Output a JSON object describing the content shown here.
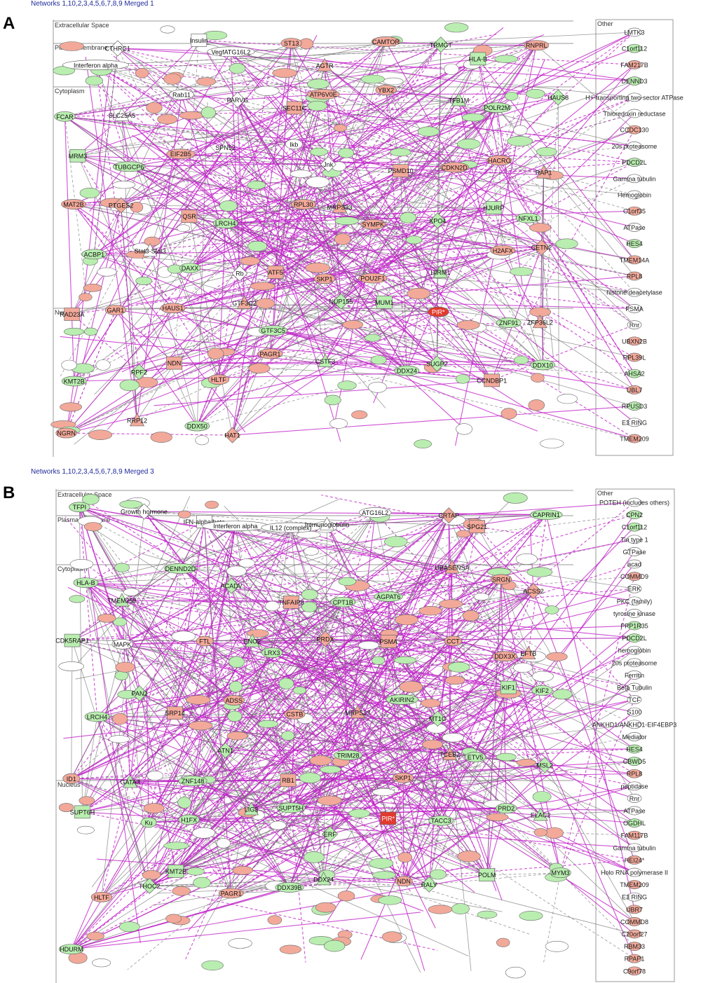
{
  "panels": [
    {
      "letter": "A",
      "title": "Networks 1,10,2,3,4,5,6,7,8,9 Merged 1",
      "layers": [
        "Extracellular Space",
        "Plasma Membrane",
        "Cytoplasm",
        "Nucleus"
      ],
      "other_label": "Other",
      "nodes": [
        {
          "label": "Interferon alpha",
          "color": "none"
        },
        {
          "label": "CTHRC1",
          "color": "none"
        },
        {
          "label": "Insulin",
          "color": "none"
        },
        {
          "label": "VegfATG16L2",
          "color": "none"
        },
        {
          "label": "ST13",
          "color": "red"
        },
        {
          "label": "AGTR",
          "color": "red"
        },
        {
          "label": "CAMTOR",
          "color": "red"
        },
        {
          "label": "TRMGT",
          "color": "green"
        },
        {
          "label": "HLA-B",
          "color": "green"
        },
        {
          "label": "RNPRL",
          "color": "red"
        },
        {
          "label": "FCAR",
          "color": "green"
        },
        {
          "label": "SLC25A5",
          "color": "none"
        },
        {
          "label": "Rab11",
          "color": "none"
        },
        {
          "label": "PARVG",
          "color": "none"
        },
        {
          "label": "SEC11C",
          "color": "red"
        },
        {
          "label": "ATP6V0E",
          "color": "red"
        },
        {
          "label": "YBX2",
          "color": "red"
        },
        {
          "label": "TFB1M",
          "color": "green"
        },
        {
          "label": "POLR2M",
          "color": "green"
        },
        {
          "label": "HAUS8",
          "color": "green"
        },
        {
          "label": "MRM3",
          "color": "green"
        },
        {
          "label": "TUBGCP6",
          "color": "green"
        },
        {
          "label": "EIF2B5",
          "color": "red"
        },
        {
          "label": "SPN52",
          "color": "none"
        },
        {
          "label": "Ikb",
          "color": "none"
        },
        {
          "label": "Jnk",
          "color": "none"
        },
        {
          "label": "PSMD10",
          "color": "red"
        },
        {
          "label": "CDKN2D",
          "color": "red"
        },
        {
          "label": "HACRO",
          "color": "red"
        },
        {
          "label": "RAP1",
          "color": "red"
        },
        {
          "label": "MAT2B",
          "color": "red"
        },
        {
          "label": "PTGES2",
          "color": "red"
        },
        {
          "label": "QSR",
          "color": "red"
        },
        {
          "label": "LRCH4",
          "color": "green"
        },
        {
          "label": "RPL30",
          "color": "red"
        },
        {
          "label": "MRPS33",
          "color": "red"
        },
        {
          "label": "SYMPK",
          "color": "red"
        },
        {
          "label": "XPO4",
          "color": "green"
        },
        {
          "label": "HJURP",
          "color": "green"
        },
        {
          "label": "NFXL1",
          "color": "green"
        },
        {
          "label": "ACBP1",
          "color": "green"
        },
        {
          "label": "Stat3-Stat3",
          "color": "none"
        },
        {
          "label": "DAXX",
          "color": "green"
        },
        {
          "label": "Rb",
          "color": "none"
        },
        {
          "label": "ATF5",
          "color": "red"
        },
        {
          "label": "SKP1",
          "color": "red"
        },
        {
          "label": "POU2F1",
          "color": "red"
        },
        {
          "label": "HIRM1",
          "color": "green"
        },
        {
          "label": "H2AFX",
          "color": "red"
        },
        {
          "label": "CETN2",
          "color": "red"
        },
        {
          "label": "RAD23A",
          "color": "red"
        },
        {
          "label": "GAR1",
          "color": "red"
        },
        {
          "label": "HAUS1",
          "color": "red"
        },
        {
          "label": "GTF3C2",
          "color": "red"
        },
        {
          "label": "GTF3C5",
          "color": "green"
        },
        {
          "label": "NUP155",
          "color": "green"
        },
        {
          "label": "MUM1",
          "color": "green"
        },
        {
          "label": "PIR*",
          "color": "dark-red"
        },
        {
          "label": "ZNF91",
          "color": "green"
        },
        {
          "label": "ZFP36L2",
          "color": "red"
        },
        {
          "label": "KMT2B",
          "color": "green"
        },
        {
          "label": "RPF2",
          "color": "green"
        },
        {
          "label": "NDN",
          "color": "red"
        },
        {
          "label": "HLTF",
          "color": "red"
        },
        {
          "label": "PAGR1",
          "color": "red"
        },
        {
          "label": "CSTF3",
          "color": "green"
        },
        {
          "label": "DDX24",
          "color": "green"
        },
        {
          "label": "SUGP2",
          "color": "green"
        },
        {
          "label": "CCNDBP1",
          "color": "red"
        },
        {
          "label": "DDX10",
          "color": "green"
        },
        {
          "label": "NGRN",
          "color": "red"
        },
        {
          "label": "RRP12",
          "color": "red"
        },
        {
          "label": "DDX50",
          "color": "green"
        },
        {
          "label": "HAT1",
          "color": "red"
        }
      ],
      "other_nodes": [
        {
          "label": "LMTK3",
          "color": "none"
        },
        {
          "label": "C1orf112",
          "color": "green"
        },
        {
          "label": "FAM217B",
          "color": "red"
        },
        {
          "label": "DENND3",
          "color": "green"
        },
        {
          "label": "H+-transporting two-sector ATPase",
          "color": "none"
        },
        {
          "label": "Thioredoxin reductase",
          "color": "none"
        },
        {
          "label": "CCDC130",
          "color": "red"
        },
        {
          "label": "20s proteasome",
          "color": "none"
        },
        {
          "label": "PDCD2L",
          "color": "green"
        },
        {
          "label": "Gamma tubulin",
          "color": "none"
        },
        {
          "label": "Hemoglobin",
          "color": "none"
        },
        {
          "label": "C1orf35",
          "color": "red"
        },
        {
          "label": "ATPase",
          "color": "none"
        },
        {
          "label": "HES4",
          "color": "green"
        },
        {
          "label": "TMEM14A",
          "color": "red"
        },
        {
          "label": "RPL8",
          "color": "red"
        },
        {
          "label": "histone deacetylase",
          "color": "none"
        },
        {
          "label": "PSMA",
          "color": "none"
        },
        {
          "label": "Rnr",
          "color": "none"
        },
        {
          "label": "UBXN2B",
          "color": "red"
        },
        {
          "label": "RPL39L",
          "color": "red"
        },
        {
          "label": "AHSA2",
          "color": "green"
        },
        {
          "label": "UBL7",
          "color": "red"
        },
        {
          "label": "RPUSD3",
          "color": "green"
        },
        {
          "label": "E3 RING",
          "color": "none"
        },
        {
          "label": "TMEM209",
          "color": "red"
        }
      ]
    },
    {
      "letter": "B",
      "title": "Networks 1,10,2,3,4,5,6,7,8,9 Merged 3",
      "layers": [
        "Extracellular Space",
        "Plasma Membrane",
        "Cytoplasm",
        "Nucleus"
      ],
      "other_label": "Other",
      "nodes": [
        {
          "label": "TFPI",
          "color": "green"
        },
        {
          "label": "Growth hormone",
          "color": "none"
        },
        {
          "label": "IFN-alpha/beta",
          "color": "none"
        },
        {
          "label": "Interferon alpha",
          "color": "none"
        },
        {
          "label": "IL12 (complex)",
          "color": "none"
        },
        {
          "label": "Immunoglobulin",
          "color": "none"
        },
        {
          "label": "ATG16L2",
          "color": "none"
        },
        {
          "label": "CRTAP",
          "color": "red"
        },
        {
          "label": "SPG21",
          "color": "red"
        },
        {
          "label": "CAPRIN1",
          "color": "green"
        },
        {
          "label": "HLA-B",
          "color": "green"
        },
        {
          "label": "TMEM259",
          "color": "green"
        },
        {
          "label": "DENND2D",
          "color": "green"
        },
        {
          "label": "ACADV",
          "color": "green"
        },
        {
          "label": "TNFAIP8",
          "color": "red"
        },
        {
          "label": "CPT1B",
          "color": "green"
        },
        {
          "label": "AGPAT6",
          "color": "green"
        },
        {
          "label": "UBASENSA",
          "color": "red"
        },
        {
          "label": "SRGN",
          "color": "red"
        },
        {
          "label": "ACSS2",
          "color": "red"
        },
        {
          "label": "CDK5RAP1",
          "color": "green"
        },
        {
          "label": "MAPK",
          "color": "none"
        },
        {
          "label": "FTL",
          "color": "red"
        },
        {
          "label": "ENO2",
          "color": "green"
        },
        {
          "label": "LRX3",
          "color": "green"
        },
        {
          "label": "PRDX",
          "color": "red"
        },
        {
          "label": "PSMA",
          "color": "red"
        },
        {
          "label": "CCT",
          "color": "red"
        },
        {
          "label": "DDX3X",
          "color": "red"
        },
        {
          "label": "EFTB",
          "color": "red"
        },
        {
          "label": "LRCH4",
          "color": "green"
        },
        {
          "label": "PAN2",
          "color": "green"
        },
        {
          "label": "SRP14",
          "color": "red"
        },
        {
          "label": "ADSS",
          "color": "red"
        },
        {
          "label": "CSTB",
          "color": "red"
        },
        {
          "label": "MRPS33",
          "color": "red"
        },
        {
          "label": "AKIRIN2",
          "color": "green"
        },
        {
          "label": "MT1G",
          "color": "green"
        },
        {
          "label": "KIF1",
          "color": "green"
        },
        {
          "label": "KIF2",
          "color": "green"
        },
        {
          "label": "ID1",
          "color": "red"
        },
        {
          "label": "GATA3",
          "color": "green"
        },
        {
          "label": "ZNF148",
          "color": "green"
        },
        {
          "label": "ATN1",
          "color": "green"
        },
        {
          "label": "RB1",
          "color": "red"
        },
        {
          "label": "TRIM28",
          "color": "green"
        },
        {
          "label": "SKP1",
          "color": "red"
        },
        {
          "label": "TCEB2",
          "color": "red"
        },
        {
          "label": "ETV5",
          "color": "green"
        },
        {
          "label": "MSL2",
          "color": "green"
        },
        {
          "label": "SUPT6H",
          "color": "green"
        },
        {
          "label": "Ku",
          "color": "green"
        },
        {
          "label": "H1FX",
          "color": "green"
        },
        {
          "label": "LIG3",
          "color": "green"
        },
        {
          "label": "SUPT5H",
          "color": "green"
        },
        {
          "label": "ERF",
          "color": "green"
        },
        {
          "label": "PIR*",
          "color": "dark-red"
        },
        {
          "label": "TACC3",
          "color": "green"
        },
        {
          "label": "PRD2",
          "color": "green"
        },
        {
          "label": "ELAC2",
          "color": "green"
        },
        {
          "label": "HLTF",
          "color": "red"
        },
        {
          "label": "THOC2",
          "color": "green"
        },
        {
          "label": "KMT2B",
          "color": "green"
        },
        {
          "label": "PAGR1",
          "color": "red"
        },
        {
          "label": "DDX39B",
          "color": "green"
        },
        {
          "label": "DDX24",
          "color": "green"
        },
        {
          "label": "NDN",
          "color": "red"
        },
        {
          "label": "RALY",
          "color": "green"
        },
        {
          "label": "POLM",
          "color": "green"
        },
        {
          "label": "MYM3",
          "color": "green"
        },
        {
          "label": "HDURM",
          "color": "green"
        }
      ],
      "other_nodes": [
        {
          "label": "POTEH (includes others)",
          "color": "none"
        },
        {
          "label": "CPN2",
          "color": "green"
        },
        {
          "label": "C1orf112",
          "color": "green"
        },
        {
          "label": "Tin type 1",
          "color": "none"
        },
        {
          "label": "GTPase",
          "color": "none"
        },
        {
          "label": "acad",
          "color": "none"
        },
        {
          "label": "COMMD9",
          "color": "red"
        },
        {
          "label": "ERK",
          "color": "none"
        },
        {
          "label": "PKC (family)",
          "color": "none"
        },
        {
          "label": "tyrosine kinase",
          "color": "none"
        },
        {
          "label": "PPP1R35",
          "color": "green"
        },
        {
          "label": "PDCD2L",
          "color": "green"
        },
        {
          "label": "hemoglobin",
          "color": "none"
        },
        {
          "label": "20s proteasome",
          "color": "none"
        },
        {
          "label": "Ferritin",
          "color": "none"
        },
        {
          "label": "Beta Tubulin",
          "color": "none"
        },
        {
          "label": "TCF",
          "color": "none"
        },
        {
          "label": "S100",
          "color": "none"
        },
        {
          "label": "ANKHD1/ANKHD1-EIF4EBP3",
          "color": "none"
        },
        {
          "label": "Mediator",
          "color": "none"
        },
        {
          "label": "HES4",
          "color": "green"
        },
        {
          "label": "CBWD5",
          "color": "green"
        },
        {
          "label": "RPL8",
          "color": "red"
        },
        {
          "label": "peptidase",
          "color": "none"
        },
        {
          "label": "Rnr",
          "color": "none"
        },
        {
          "label": "ATPase",
          "color": "none"
        },
        {
          "label": "OGDHL",
          "color": "green"
        },
        {
          "label": "FAM117B",
          "color": "red"
        },
        {
          "label": "Gamma tubulin",
          "color": "none"
        },
        {
          "label": "HEI24*",
          "color": "red"
        },
        {
          "label": "Holo RNA polymerase II",
          "color": "none"
        },
        {
          "label": "TMEM209",
          "color": "red"
        },
        {
          "label": "E3 RING",
          "color": "none"
        },
        {
          "label": "UBR7",
          "color": "red"
        },
        {
          "label": "COMMD8",
          "color": "red"
        },
        {
          "label": "C20orf27",
          "color": "red"
        },
        {
          "label": "RBM33",
          "color": "red"
        },
        {
          "label": "RPAP1",
          "color": "red"
        },
        {
          "label": "C9orf78",
          "color": "red"
        }
      ]
    }
  ],
  "colors": {
    "red": "#f2a99a",
    "dark-red": "#e23a2e",
    "green": "#b9eeb0",
    "none": "#ffffff",
    "edge-magenta": "#c020c8",
    "edge-gray": "#6e6e6e",
    "node-stroke": "#6a6a6a",
    "title-blue": "#1f2a9c"
  }
}
